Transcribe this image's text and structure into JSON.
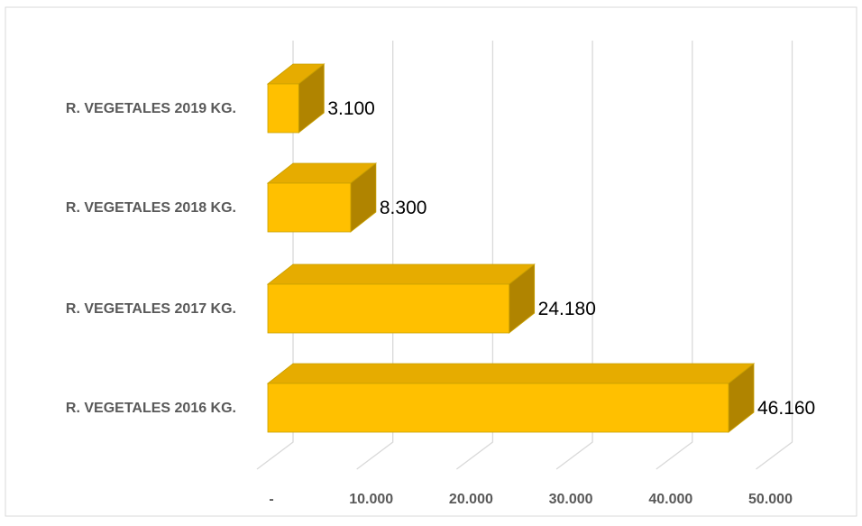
{
  "chart_data": {
    "type": "bar",
    "orientation": "horizontal",
    "style": "3d",
    "categories": [
      "R. VEGETALES 2016 KG.",
      "R. VEGETALES 2017 KG.",
      "R. VEGETALES 2018 KG.",
      "R. VEGETALES 2019 KG."
    ],
    "values": [
      46160,
      24180,
      8300,
      3100
    ],
    "data_labels": [
      "46.160",
      "24.180",
      "8.300",
      "3.100"
    ],
    "xlim": [
      0,
      50000
    ],
    "ticks": [
      0,
      10000,
      20000,
      30000,
      40000,
      50000
    ],
    "tick_labels": [
      "-",
      "10.000",
      "20.000",
      "30.000",
      "40.000",
      "50.000"
    ],
    "grid": true,
    "legend": "none",
    "colors": {
      "bar_front": "#FFC000",
      "bar_top": "#E6AC00",
      "bar_side": "#B08400",
      "bar_stroke": "#C9A000",
      "grid": "#D9D9D9",
      "frame": "#D9D9D9"
    }
  }
}
